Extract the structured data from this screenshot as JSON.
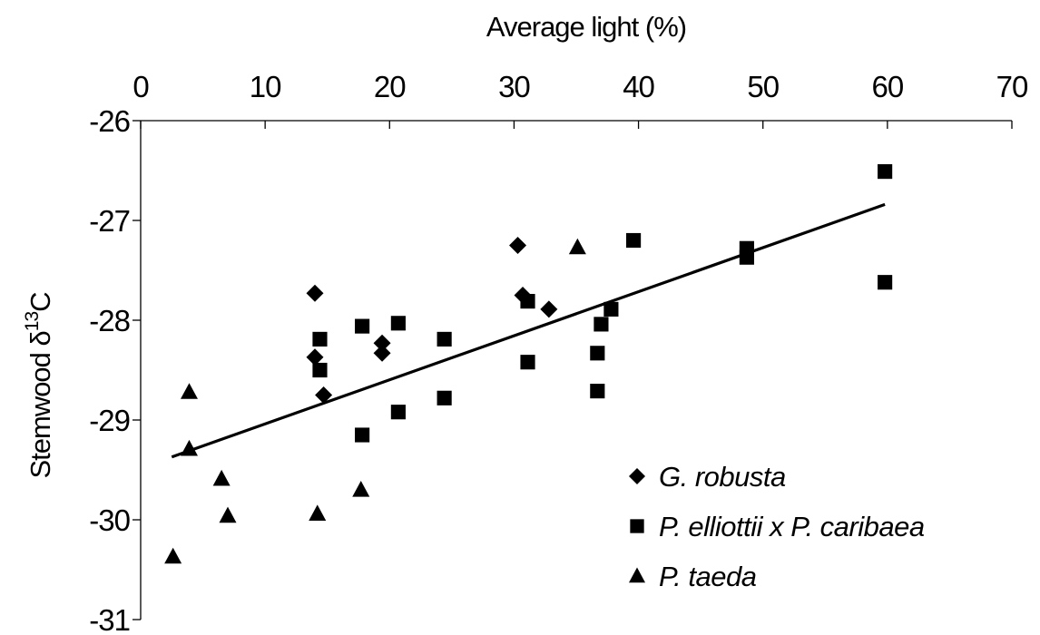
{
  "chart_data": {
    "type": "scatter",
    "xlabel": "Average light (%)",
    "ylabel_prefix": "Stemwood δ",
    "ylabel_superscript": "13",
    "ylabel_suffix": "C",
    "x_axis_position": "top",
    "xlim": [
      0,
      70
    ],
    "ylim": [
      -31,
      -26
    ],
    "x_ticks": [
      0,
      10,
      20,
      30,
      40,
      50,
      60,
      70
    ],
    "y_ticks": [
      -26,
      -27,
      -28,
      -29,
      -30,
      -31
    ],
    "grid": false,
    "legend_position": "bottom-right",
    "series": [
      {
        "name": "G. robusta",
        "marker": "diamond",
        "color": "#000000",
        "points": [
          [
            14.0,
            -27.73
          ],
          [
            14.0,
            -28.37
          ],
          [
            14.7,
            -28.75
          ],
          [
            19.4,
            -28.23
          ],
          [
            19.4,
            -28.33
          ],
          [
            30.3,
            -27.25
          ],
          [
            30.7,
            -27.75
          ],
          [
            32.8,
            -27.89
          ]
        ]
      },
      {
        "name": "P. elliottii x P. caribaea",
        "marker": "square",
        "color": "#000000",
        "points": [
          [
            14.4,
            -28.19
          ],
          [
            14.4,
            -28.5
          ],
          [
            17.8,
            -28.06
          ],
          [
            17.8,
            -29.15
          ],
          [
            20.7,
            -28.03
          ],
          [
            20.7,
            -28.92
          ],
          [
            24.4,
            -28.19
          ],
          [
            24.4,
            -28.78
          ],
          [
            31.1,
            -27.81
          ],
          [
            31.1,
            -28.42
          ],
          [
            36.7,
            -28.33
          ],
          [
            36.7,
            -28.71
          ],
          [
            37.0,
            -28.04
          ],
          [
            37.8,
            -27.89
          ],
          [
            39.6,
            -27.2
          ],
          [
            48.7,
            -27.28
          ],
          [
            48.7,
            -27.37
          ],
          [
            59.8,
            -26.51
          ],
          [
            59.8,
            -27.62
          ]
        ]
      },
      {
        "name": "P. taeda",
        "marker": "triangle",
        "color": "#000000",
        "points": [
          [
            2.6,
            -30.37
          ],
          [
            3.9,
            -28.72
          ],
          [
            3.9,
            -29.29
          ],
          [
            6.5,
            -29.59
          ],
          [
            7.0,
            -29.96
          ],
          [
            14.2,
            -29.94
          ],
          [
            17.7,
            -29.7
          ],
          [
            35.1,
            -27.27
          ]
        ]
      }
    ],
    "trend_line": {
      "x": [
        2.5,
        59.8
      ],
      "y": [
        -29.37,
        -26.84
      ]
    }
  }
}
